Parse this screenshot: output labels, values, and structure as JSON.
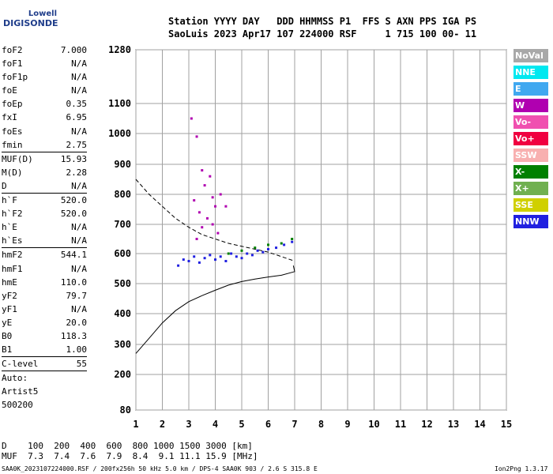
{
  "logo": {
    "line1": "Lowell",
    "line2": "DIGISONDE"
  },
  "header": {
    "line1": "Station YYYY DAY   DDD HHMMSS P1  FFS S AXN PPS IGA PS",
    "line2": "SaoLuis 2023 Apr17 107 224000 RSF     1 715 100 00- 11"
  },
  "params": [
    {
      "k": "foF2",
      "v": "7.000"
    },
    {
      "k": "foF1",
      "v": "N/A"
    },
    {
      "k": "foF1p",
      "v": "N/A"
    },
    {
      "k": "foE",
      "v": "N/A"
    },
    {
      "k": "foEp",
      "v": "0.35"
    },
    {
      "k": "fxI",
      "v": "6.95"
    },
    {
      "k": "foEs",
      "v": "N/A"
    },
    {
      "k": "fmin",
      "v": "2.75",
      "sep": true
    },
    {
      "k": "MUF(D)",
      "v": "15.93"
    },
    {
      "k": "M(D)",
      "v": "2.28"
    },
    {
      "k": "D",
      "v": "N/A",
      "sep": true
    },
    {
      "k": "h`F",
      "v": "520.0"
    },
    {
      "k": "h`F2",
      "v": "520.0"
    },
    {
      "k": "h`E",
      "v": "N/A"
    },
    {
      "k": "h`Es",
      "v": "N/A",
      "sep": true
    },
    {
      "k": "hmF2",
      "v": "544.1"
    },
    {
      "k": "hmF1",
      "v": "N/A"
    },
    {
      "k": "hmE",
      "v": "110.0"
    },
    {
      "k": "yF2",
      "v": "79.7"
    },
    {
      "k": "yF1",
      "v": "N/A"
    },
    {
      "k": "yE",
      "v": "20.0"
    },
    {
      "k": "B0",
      "v": "118.3"
    },
    {
      "k": "B1",
      "v": "1.00",
      "sep": true
    },
    {
      "k": "C-level",
      "v": "55",
      "sep": true
    },
    {
      "k": "Auto:",
      "v": ""
    },
    {
      "k": "Artist5",
      "v": ""
    },
    {
      "k": "500200",
      "v": ""
    }
  ],
  "legend": [
    {
      "label": "NoVal",
      "color": "#a8a8a8"
    },
    {
      "label": "NNE",
      "color": "#00e8f0"
    },
    {
      "label": "E",
      "color": "#40a8f0"
    },
    {
      "label": "W",
      "color": "#b000b0"
    },
    {
      "label": "Vo-",
      "color": "#f050b0"
    },
    {
      "label": "Vo+",
      "color": "#f00040"
    },
    {
      "label": "SSW",
      "color": "#f8b0b0"
    },
    {
      "label": "X-",
      "color": "#008000"
    },
    {
      "label": "X+",
      "color": "#70b050"
    },
    {
      "label": "SSE",
      "color": "#d0d000"
    },
    {
      "label": "NNW",
      "color": "#2020e0"
    }
  ],
  "bottom": {
    "d_row": "D    100  200  400  600  800 1000 1500 3000 [km]",
    "muf_row": "MUF  7.3  7.4  7.6  7.9  8.4  9.1 11.1 15.9 [MHz]",
    "footer_left": "SAA0K_2023107224000.RSF / 200fx256h 50 kHz 5.0 km / DPS-4 SAA0K 903 / 2.6 S 315.8 E",
    "footer_right": "Ion2Png 1.3.17"
  },
  "chart_data": {
    "type": "scatter",
    "xlabel": "",
    "ylabel": "",
    "x_ticks": [
      1,
      2,
      3,
      4,
      5,
      6,
      7,
      8,
      9,
      10,
      11,
      12,
      13,
      14,
      15
    ],
    "y_ticks": [
      80,
      200,
      300,
      400,
      500,
      600,
      700,
      800,
      900,
      1000,
      1100,
      1280
    ],
    "xlim": [
      1,
      15
    ],
    "ylim": [
      80,
      1280
    ],
    "grid": true,
    "traces": [
      {
        "name": "W echoes",
        "color": "#b000b0",
        "points": [
          [
            3.1,
            1050
          ],
          [
            3.3,
            990
          ],
          [
            3.5,
            880
          ],
          [
            3.6,
            830
          ],
          [
            3.8,
            860
          ],
          [
            3.9,
            790
          ],
          [
            4.0,
            760
          ],
          [
            3.4,
            740
          ],
          [
            3.7,
            720
          ],
          [
            4.2,
            800
          ],
          [
            4.4,
            760
          ],
          [
            3.2,
            780
          ],
          [
            3.5,
            690
          ],
          [
            3.9,
            700
          ],
          [
            4.1,
            670
          ],
          [
            3.3,
            650
          ]
        ]
      },
      {
        "name": "main trace",
        "color": "#2020e0",
        "points": [
          [
            2.6,
            560
          ],
          [
            2.8,
            580
          ],
          [
            3.0,
            575
          ],
          [
            3.2,
            590
          ],
          [
            3.4,
            570
          ],
          [
            3.6,
            585
          ],
          [
            3.8,
            595
          ],
          [
            4.0,
            580
          ],
          [
            4.2,
            590
          ],
          [
            4.4,
            575
          ],
          [
            4.6,
            600
          ],
          [
            4.8,
            590
          ],
          [
            5.0,
            585
          ],
          [
            5.2,
            600
          ],
          [
            5.4,
            595
          ],
          [
            5.6,
            610
          ],
          [
            5.8,
            605
          ],
          [
            6.0,
            615
          ],
          [
            6.3,
            620
          ],
          [
            6.6,
            630
          ],
          [
            6.9,
            640
          ]
        ]
      },
      {
        "name": "X-",
        "color": "#008000",
        "points": [
          [
            4.5,
            600
          ],
          [
            5.0,
            610
          ],
          [
            5.5,
            620
          ],
          [
            6.0,
            630
          ],
          [
            6.5,
            635
          ],
          [
            6.9,
            650
          ]
        ]
      }
    ],
    "profile_line": {
      "x": [
        1.0,
        1.5,
        2.0,
        2.5,
        3.0,
        3.5,
        4.0,
        4.5,
        5.0,
        5.5,
        6.0,
        6.5,
        7.0,
        6.95
      ],
      "y": [
        270,
        320,
        370,
        410,
        440,
        460,
        478,
        495,
        507,
        515,
        522,
        528,
        540,
        560
      ]
    },
    "profile_dashed": {
      "x": [
        1.0,
        1.5,
        2.0,
        2.5,
        3.0,
        3.5,
        4.0,
        4.5,
        5.0,
        5.5,
        6.0,
        6.5,
        7.0
      ],
      "y": [
        850,
        800,
        760,
        720,
        690,
        665,
        650,
        635,
        625,
        615,
        605,
        590,
        575
      ]
    }
  }
}
